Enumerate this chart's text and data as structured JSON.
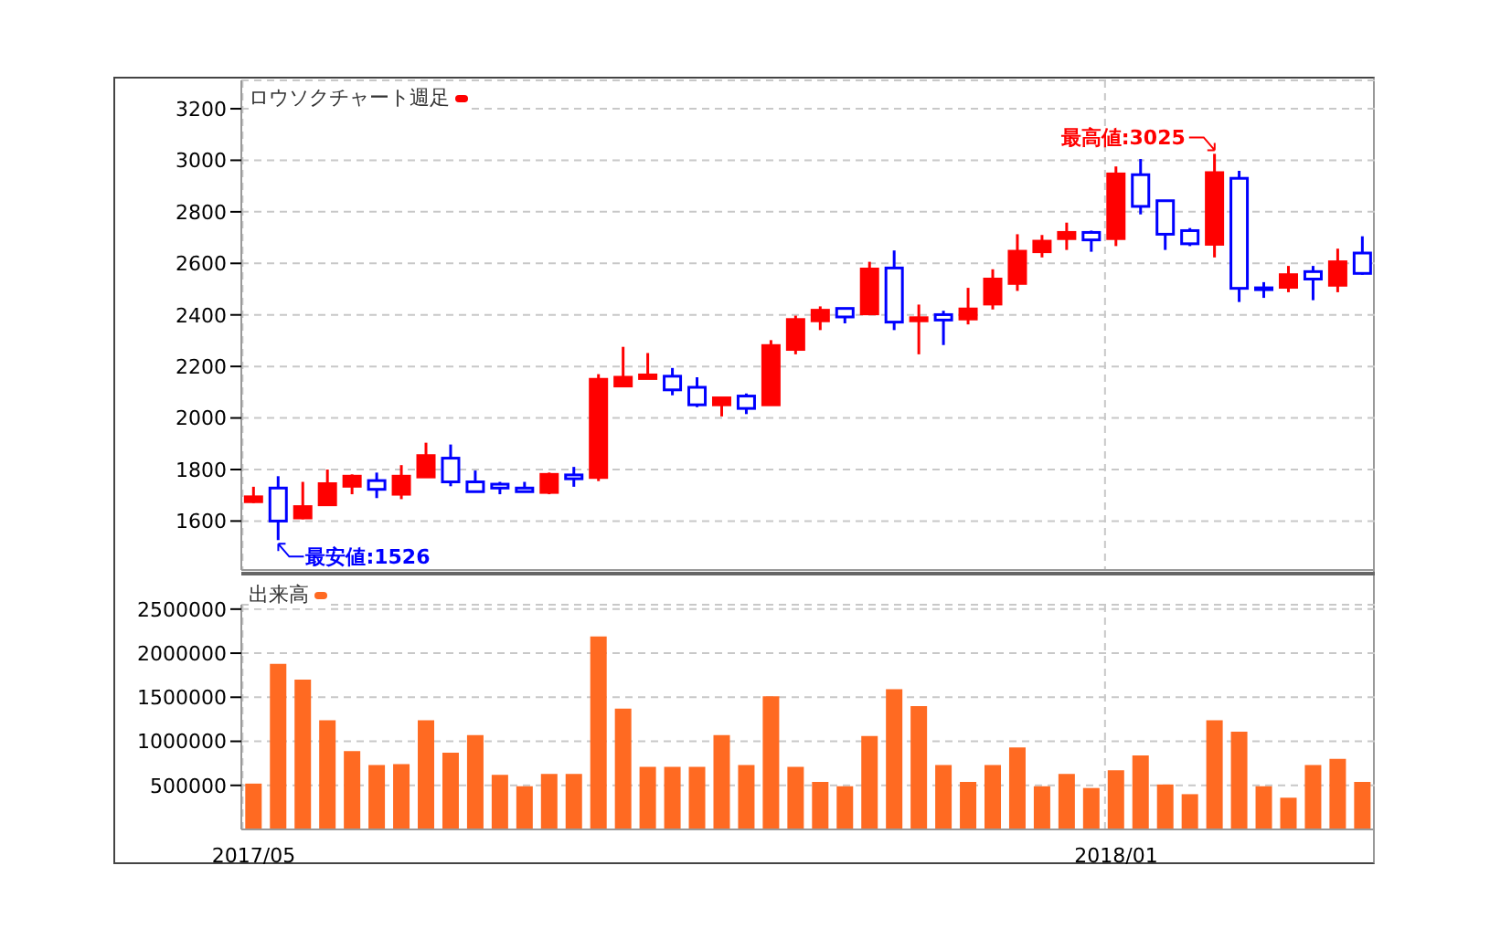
{
  "chart_data": [
    {
      "type": "candlestick",
      "categories": [
        "2017/05",
        null,
        null,
        null,
        null,
        null,
        null,
        null,
        null,
        null,
        null,
        null,
        null,
        null,
        null,
        null,
        null,
        null,
        null,
        null,
        null,
        null,
        null,
        null,
        null,
        null,
        null,
        null,
        null,
        null,
        null,
        null,
        null,
        null,
        null,
        "2018/01",
        null,
        null,
        null,
        null,
        null,
        null,
        null,
        null,
        null,
        null
      ],
      "title": "ロウソクチャート週足",
      "colors": [
        "#ff0000",
        "#0000ff",
        "#ff0000",
        "#ff0000",
        "#ff0000",
        "#0000ff",
        "#ff0000",
        "#ff0000",
        "#0000ff",
        "#0000ff",
        "#0000ff",
        "#0000ff",
        "#ff0000",
        "#0000ff",
        "#ff0000",
        "#ff0000",
        "#ff0000",
        "#0000ff",
        "#0000ff",
        "#ff0000",
        "#0000ff",
        "#ff0000",
        "#ff0000",
        "#ff0000",
        "#0000ff",
        "#ff0000",
        "#0000ff",
        "#ff0000",
        "#0000ff",
        "#ff0000",
        "#ff0000",
        "#ff0000",
        "#ff0000",
        "#ff0000",
        "#0000ff",
        "#ff0000",
        "#0000ff",
        "#0000ff",
        "#0000ff",
        "#ff0000",
        "#0000ff",
        "#0000ff",
        "#ff0000",
        "#0000ff",
        "#ff0000",
        "#0000ff"
      ],
      "ohlc": [
        [
          1675,
          1733,
          1670,
          1694
        ],
        [
          1728,
          1774,
          1526,
          1600
        ],
        [
          1612,
          1752,
          1607,
          1656
        ],
        [
          1663,
          1800,
          1663,
          1745
        ],
        [
          1735,
          1781,
          1704,
          1774
        ],
        [
          1757,
          1788,
          1689,
          1723
        ],
        [
          1704,
          1817,
          1685,
          1774
        ],
        [
          1771,
          1904,
          1771,
          1854
        ],
        [
          1844,
          1897,
          1735,
          1752
        ],
        [
          1752,
          1796,
          1714,
          1714
        ],
        [
          1743,
          1752,
          1704,
          1728
        ],
        [
          1728,
          1752,
          1714,
          1714
        ],
        [
          1711,
          1788,
          1704,
          1781
        ],
        [
          1779,
          1810,
          1733,
          1764
        ],
        [
          1769,
          2170,
          1755,
          2150
        ],
        [
          2124,
          2276,
          2124,
          2158
        ],
        [
          2153,
          2252,
          2153,
          2167
        ],
        [
          2162,
          2194,
          2088,
          2109
        ],
        [
          2119,
          2158,
          2042,
          2051
        ],
        [
          2051,
          2078,
          2006,
          2078
        ],
        [
          2085,
          2095,
          2015,
          2037
        ],
        [
          2051,
          2302,
          2051,
          2281
        ],
        [
          2266,
          2397,
          2247,
          2382
        ],
        [
          2377,
          2433,
          2341,
          2418
        ],
        [
          2425,
          2425,
          2367,
          2392
        ],
        [
          2404,
          2606,
          2399,
          2578
        ],
        [
          2582,
          2650,
          2341,
          2372
        ],
        [
          2377,
          2440,
          2247,
          2389
        ],
        [
          2401,
          2416,
          2283,
          2380
        ],
        [
          2384,
          2505,
          2363,
          2423
        ],
        [
          2442,
          2577,
          2421,
          2539
        ],
        [
          2522,
          2713,
          2493,
          2647
        ],
        [
          2645,
          2710,
          2623,
          2686
        ],
        [
          2696,
          2758,
          2652,
          2720
        ],
        [
          2720,
          2727,
          2645,
          2691
        ],
        [
          2696,
          2976,
          2667,
          2947
        ],
        [
          2944,
          3005,
          2790,
          2821
        ],
        [
          2843,
          2843,
          2652,
          2713
        ],
        [
          2727,
          2737,
          2667,
          2676
        ],
        [
          2674,
          3025,
          2623,
          2952
        ],
        [
          2930,
          2959,
          2450,
          2503
        ],
        [
          2505,
          2527,
          2466,
          2503
        ],
        [
          2507,
          2590,
          2488,
          2556
        ],
        [
          2568,
          2590,
          2457,
          2539
        ],
        [
          2515,
          2657,
          2488,
          2606
        ],
        [
          2640,
          2705,
          2556,
          2561
        ]
      ],
      "ylim": [
        1410,
        3310
      ],
      "yticks": [
        1600,
        1800,
        2000,
        2200,
        2400,
        2600,
        2800,
        3000,
        3200
      ],
      "grid": true,
      "tick_labels": "y",
      "annotations": [
        "最安値:1526",
        "最高値:3025"
      ]
    },
    {
      "type": "bar",
      "categories": [
        "2017/05",
        null,
        null,
        null,
        null,
        null,
        null,
        null,
        null,
        null,
        null,
        null,
        null,
        null,
        null,
        null,
        null,
        null,
        null,
        null,
        null,
        null,
        null,
        null,
        null,
        null,
        null,
        null,
        null,
        null,
        null,
        null,
        null,
        null,
        null,
        "2018/01",
        null,
        null,
        null,
        null,
        null,
        null,
        null,
        null,
        null,
        null
      ],
      "series": [
        {
          "name": "出来高",
          "color": "#ff6a22",
          "values": [
            520000,
            1880000,
            1700000,
            1240000,
            890000,
            730000,
            740000,
            1240000,
            870000,
            1070000,
            620000,
            490000,
            630000,
            630000,
            2190000,
            1370000,
            710000,
            710000,
            710000,
            1070000,
            730000,
            1510000,
            710000,
            540000,
            490000,
            1060000,
            1590000,
            1400000,
            730000,
            540000,
            730000,
            930000,
            490000,
            630000,
            470000,
            670000,
            840000,
            510000,
            400000,
            1240000,
            1110000,
            490000,
            360000,
            730000,
            800000,
            540000
          ]
        }
      ],
      "ylim": [
        0,
        2550000
      ],
      "yticks": [
        500000,
        1000000,
        1500000,
        2000000,
        2500000
      ],
      "grid": true,
      "legend": "top left"
    }
  ]
}
